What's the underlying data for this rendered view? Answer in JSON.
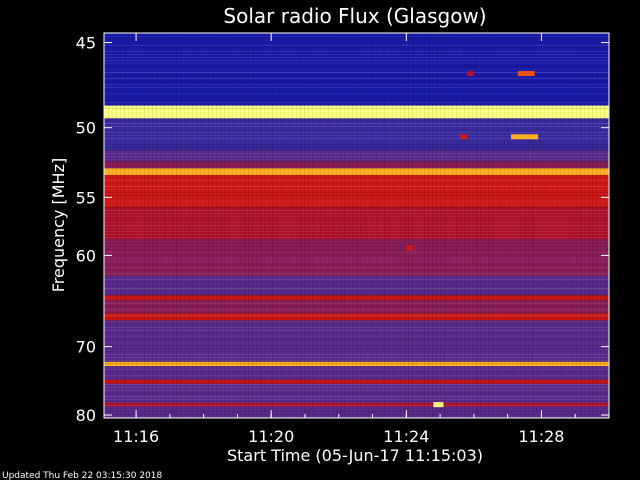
{
  "chart_data": {
    "type": "heatmap",
    "title": "Solar radio Flux (Glasgow)",
    "xlabel": "Start Time (05-Jun-17 11:15:03)",
    "ylabel": "Frequency [MHz]",
    "x_ticks": [
      "11:16",
      "11:20",
      "11:24",
      "11:28"
    ],
    "x_tick_minutes": [
      16,
      20,
      24,
      28
    ],
    "x_range_minutes": [
      15.05,
      30.0
    ],
    "y_ticks": [
      "45",
      "50",
      "55",
      "60",
      "70",
      "80"
    ],
    "y_tick_values": [
      45,
      50,
      55,
      60,
      70,
      80
    ],
    "y_range": [
      44.5,
      80.5
    ],
    "y_scale": "reciprocal",
    "colorscale": [
      "#10106a",
      "#1a1aa8",
      "#3a2aa0",
      "#5a2a8c",
      "#8a1e5a",
      "#b0102a",
      "#d01818",
      "#f05010",
      "#ffb020",
      "#ffff80"
    ],
    "bands": [
      {
        "from": 44.5,
        "to": 45.2,
        "level": 1
      },
      {
        "from": 45.2,
        "to": 48.6,
        "level": 0.5
      },
      {
        "from": 48.6,
        "to": 49.4,
        "level": 9
      },
      {
        "from": 49.4,
        "to": 51.5,
        "level": 1.5
      },
      {
        "from": 51.5,
        "to": 52.3,
        "level": 2.5
      },
      {
        "from": 52.3,
        "to": 52.8,
        "level": 4
      },
      {
        "from": 52.8,
        "to": 53.3,
        "level": 8
      },
      {
        "from": 53.3,
        "to": 55.8,
        "level": 6
      },
      {
        "from": 55.8,
        "to": 58.5,
        "level": 4.5
      },
      {
        "from": 58.5,
        "to": 62.0,
        "level": 3.5
      },
      {
        "from": 62.0,
        "to": 64.0,
        "level": 3
      },
      {
        "from": 64.0,
        "to": 64.5,
        "level": 6
      },
      {
        "from": 64.5,
        "to": 66.0,
        "level": 3.5
      },
      {
        "from": 66.0,
        "to": 66.8,
        "level": 5.5
      },
      {
        "from": 66.8,
        "to": 72.0,
        "level": 2.5
      },
      {
        "from": 72.0,
        "to": 72.6,
        "level": 8
      },
      {
        "from": 72.6,
        "to": 74.5,
        "level": 2.5
      },
      {
        "from": 74.5,
        "to": 75.1,
        "level": 5.5
      },
      {
        "from": 75.1,
        "to": 78.0,
        "level": 2.5
      },
      {
        "from": 78.0,
        "to": 78.6,
        "level": 4.5
      },
      {
        "from": 78.6,
        "to": 80.5,
        "level": 2.5
      }
    ],
    "events": [
      {
        "t": 27.3,
        "t2": 27.8,
        "f": 46.7,
        "level": 7
      },
      {
        "t": 25.8,
        "t2": 26.0,
        "f": 46.7,
        "level": 5
      },
      {
        "t": 27.1,
        "t2": 27.9,
        "f": 50.6,
        "level": 8
      },
      {
        "t": 25.6,
        "t2": 25.8,
        "f": 50.6,
        "level": 6
      },
      {
        "t": 24.0,
        "t2": 24.2,
        "f": 59.3,
        "level": 6
      },
      {
        "t": 24.8,
        "t2": 25.1,
        "f": 78.3,
        "level": 9
      }
    ],
    "grid": false,
    "legend": "none"
  },
  "footer": {
    "updated": "Updated Thu Feb 22 03:15:30 2018"
  }
}
